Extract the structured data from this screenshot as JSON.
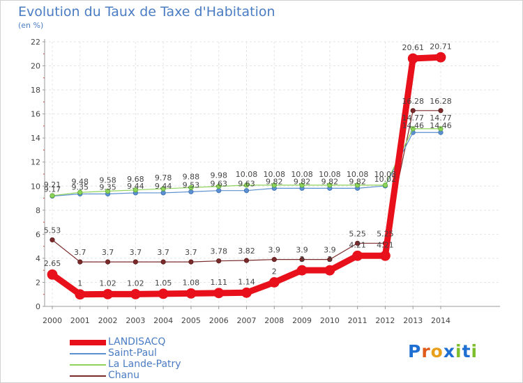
{
  "title": "Evolution du Taux de Taxe d'Habitation",
  "subtitle": "(en %)",
  "logo": {
    "letters": [
      "P",
      "r",
      "o",
      "x",
      "i",
      "t",
      "i"
    ],
    "colors": [
      "#1e6fd1",
      "#e05a1a",
      "#e8a01c",
      "#1e6fd1",
      "#7cbf2a",
      "#1e6fd1",
      "#7cbf2a"
    ]
  },
  "chart_data": {
    "type": "line",
    "title": "Evolution du Taux de Taxe d'Habitation",
    "ylabel": "(en %)",
    "xlabel": "",
    "ylim": [
      0,
      22
    ],
    "yticks": [
      0,
      2,
      4,
      6,
      8,
      10,
      12,
      14,
      16,
      18,
      20,
      22
    ],
    "x": [
      "2000",
      "2001",
      "2002",
      "2003",
      "2004",
      "2005",
      "2006",
      "2007",
      "2008",
      "2009",
      "2010",
      "2011",
      "2012",
      "2013",
      "2014"
    ],
    "grid": true,
    "legend": "bottom-left",
    "series": [
      {
        "name": "LANDISACQ",
        "color": "#e8101a",
        "values": [
          2.65,
          1,
          1.02,
          1.02,
          1.05,
          1.08,
          1.11,
          1.14,
          2,
          3,
          3,
          4.21,
          4.21,
          20.61,
          20.71
        ],
        "labels": [
          "2.65",
          "1",
          "1.02",
          "1.02",
          "1.05",
          "1.08",
          "1.11",
          "1.14",
          "2",
          "3",
          "3",
          "4.21",
          "4.21",
          "20.61",
          "20.71"
        ]
      },
      {
        "name": "Saint-Paul",
        "color": "#5b8fd0",
        "values": [
          9.17,
          9.35,
          9.35,
          9.44,
          9.44,
          9.53,
          9.63,
          9.63,
          9.82,
          9.82,
          9.82,
          9.82,
          10.02,
          14.46,
          14.46
        ],
        "labels": [
          "9.17",
          "9.35",
          "9.35",
          "9.44",
          "9.44",
          "9.53",
          "9.63",
          "9.63",
          "9.82",
          "9.82",
          "9.82",
          "9.82",
          "10.02",
          "14.46",
          "14.46"
        ]
      },
      {
        "name": "La Lande-Patry",
        "color": "#8fd45a",
        "values": [
          9.21,
          9.48,
          9.58,
          9.68,
          9.78,
          9.88,
          9.98,
          10.08,
          10.08,
          10.08,
          10.08,
          10.08,
          10.08,
          14.77,
          14.77
        ],
        "labels": [
          "9.21",
          "9.48",
          "9.58",
          "9.68",
          "9.78",
          "9.88",
          "9.98",
          "10.08",
          "10.08",
          "10.08",
          "10.08",
          "10.08",
          "10.08",
          "14.77",
          "14.77"
        ]
      },
      {
        "name": "Chanu",
        "color": "#7a2a2a",
        "values": [
          5.53,
          3.7,
          3.7,
          3.7,
          3.7,
          3.7,
          3.78,
          3.82,
          3.9,
          3.9,
          3.9,
          5.25,
          5.25,
          16.28,
          16.28
        ],
        "labels": [
          "5.53",
          "3.7",
          "3.7",
          "3.7",
          "3.7",
          "3.7",
          "3.78",
          "3.82",
          "3.9",
          "3.9",
          "3.9",
          "5.25",
          "5.25",
          "16.28",
          "16.28"
        ]
      }
    ]
  }
}
